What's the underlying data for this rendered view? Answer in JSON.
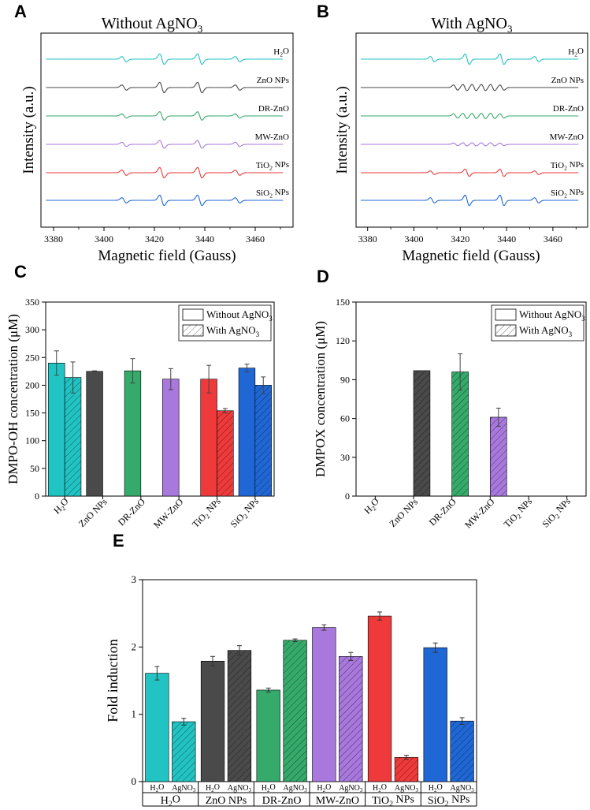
{
  "figure": {
    "panel_letters": [
      "A",
      "B",
      "C",
      "D",
      "E"
    ],
    "colors": {
      "H2O": "#22c3c3",
      "ZnO NPs": "#4a4a4a",
      "DR-ZnO": "#36aa6a",
      "MW-ZnO": "#a878dc",
      "TiO2 NPs": "#ee3a3a",
      "SiO2 NPs": "#2067d6"
    }
  },
  "chart_data": [
    {
      "panel": "A",
      "type": "line",
      "title": "Without AgNO3",
      "title_main": "Without AgNO",
      "title_sub": "3",
      "xlabel": "Magnetic field (Gauss)",
      "ylabel": "Intensity (a.u.)",
      "xlim": [
        3375,
        3475
      ],
      "xticks": [
        3380,
        3400,
        3420,
        3440,
        3460
      ],
      "series": [
        {
          "name": "H2O",
          "label_main": "H",
          "label_sub": "2",
          "label_tail": "O",
          "peaks": [
            3408,
            3423,
            3438,
            3453
          ],
          "amps": [
            0.5,
            1.0,
            1.0,
            0.5
          ],
          "spacing": 0
        },
        {
          "name": "ZnO NPs",
          "label_main": "ZnO NPs",
          "label_sub": "",
          "label_tail": "",
          "peaks": [
            3408,
            3423,
            3438,
            3453
          ],
          "amps": [
            0.5,
            1.0,
            1.0,
            0.5
          ],
          "spacing": 0
        },
        {
          "name": "DR-ZnO",
          "label_main": "DR-ZnO",
          "label_sub": "",
          "label_tail": "",
          "peaks": [
            3408,
            3423,
            3438,
            3453
          ],
          "amps": [
            0.4,
            0.8,
            0.8,
            0.4
          ],
          "spacing": 0
        },
        {
          "name": "MW-ZnO",
          "label_main": "MW-ZnO",
          "label_sub": "",
          "label_tail": "",
          "peaks": [
            3408,
            3423,
            3438,
            3453
          ],
          "amps": [
            0.4,
            0.75,
            0.75,
            0.4
          ],
          "spacing": 0
        },
        {
          "name": "TiO2 NPs",
          "label_main": "TiO",
          "label_sub": "2",
          "label_tail": " NPs",
          "peaks": [
            3408,
            3423,
            3438,
            3453
          ],
          "amps": [
            0.5,
            1.0,
            1.0,
            0.5
          ],
          "spacing": 0
        },
        {
          "name": "SiO2 NPs",
          "label_main": "SiO",
          "label_sub": "2",
          "label_tail": " NPs",
          "peaks": [
            3408,
            3423,
            3438,
            3453
          ],
          "amps": [
            0.5,
            1.0,
            1.0,
            0.5
          ],
          "spacing": 0
        }
      ]
    },
    {
      "panel": "B",
      "type": "line",
      "title": "With AgNO3",
      "title_main": "With AgNO",
      "title_sub": "3",
      "xlabel": "Magnetic field (Gauss)",
      "ylabel": "Intensity (a.u.)",
      "xlim": [
        3375,
        3475
      ],
      "xticks": [
        3380,
        3400,
        3420,
        3440,
        3460
      ],
      "series": [
        {
          "name": "H2O",
          "label_main": "H",
          "label_sub": "2",
          "label_tail": "O",
          "peaks": [
            3408,
            3423,
            3438,
            3453
          ],
          "amps": [
            0.5,
            1.0,
            1.0,
            0.5
          ],
          "spacing": 0
        },
        {
          "name": "ZnO NPs",
          "label_main": "ZnO NPs",
          "label_sub": "",
          "label_tail": "",
          "peaks": [
            3418,
            3422,
            3426,
            3430,
            3434,
            3438
          ],
          "amps": [
            0.5,
            0.6,
            0.6,
            0.6,
            0.6,
            0.5
          ],
          "spacing": 0
        },
        {
          "name": "DR-ZnO",
          "label_main": "DR-ZnO",
          "label_sub": "",
          "label_tail": "",
          "peaks": [
            3418,
            3422,
            3426,
            3430,
            3434,
            3438
          ],
          "amps": [
            0.4,
            0.5,
            0.5,
            0.5,
            0.5,
            0.4
          ],
          "spacing": 0
        },
        {
          "name": "MW-ZnO",
          "label_main": "MW-ZnO",
          "label_sub": "",
          "label_tail": "",
          "peaks": [
            3418,
            3422,
            3426,
            3430,
            3434,
            3438
          ],
          "amps": [
            0.25,
            0.3,
            0.3,
            0.3,
            0.3,
            0.25
          ],
          "spacing": 0
        },
        {
          "name": "TiO2 NPs",
          "label_main": "TiO",
          "label_sub": "2",
          "label_tail": " NPs",
          "peaks": [
            3408,
            3423,
            3438,
            3453
          ],
          "amps": [
            0.35,
            0.7,
            0.7,
            0.35
          ],
          "spacing": 0
        },
        {
          "name": "SiO2 NPs",
          "label_main": "SiO",
          "label_sub": "2",
          "label_tail": " NPs",
          "peaks": [
            3408,
            3423,
            3438,
            3453
          ],
          "amps": [
            0.5,
            1.0,
            1.0,
            0.5
          ],
          "spacing": 0
        }
      ]
    },
    {
      "panel": "C",
      "type": "bar",
      "ylabel": "DMPO-OH concentration (μM)",
      "ylim": [
        0,
        350
      ],
      "yticks": [
        0,
        50,
        100,
        150,
        200,
        250,
        300,
        350
      ],
      "legend": [
        {
          "label": "Without AgNO",
          "sub": "3",
          "hatched": false
        },
        {
          "label": "With AgNO",
          "sub": "3",
          "hatched": true
        }
      ],
      "legend_position": "top-right",
      "categories": [
        {
          "name": "H2O",
          "main": "H",
          "sub": "2",
          "tail": "O"
        },
        {
          "name": "ZnO NPs",
          "main": "ZnO NPs",
          "sub": "",
          "tail": ""
        },
        {
          "name": "DR-ZnO",
          "main": "DR-ZnO",
          "sub": "",
          "tail": ""
        },
        {
          "name": "MW-ZnO",
          "main": "MW-ZnO",
          "sub": "",
          "tail": ""
        },
        {
          "name": "TiO2 NPs",
          "main": "TiO",
          "sub": "2",
          "tail": " NPs"
        },
        {
          "name": "SiO2 NPs",
          "main": "SiO",
          "sub": "2",
          "tail": " NPs"
        }
      ],
      "series": [
        {
          "name": "Without AgNO3",
          "values": [
            240,
            225,
            226,
            211,
            211,
            231
          ],
          "errors": [
            22,
            1,
            22,
            19,
            25,
            7
          ]
        },
        {
          "name": "With AgNO3",
          "values": [
            214,
            0,
            0,
            0,
            154,
            200
          ],
          "errors": [
            28,
            0,
            0,
            0,
            4,
            15
          ]
        }
      ]
    },
    {
      "panel": "D",
      "type": "bar",
      "ylabel": "DMPOX concentration (μM)",
      "ylim": [
        0,
        150
      ],
      "yticks": [
        0,
        30,
        60,
        90,
        120,
        150
      ],
      "legend": [
        {
          "label": "Without AgNO",
          "sub": "3",
          "hatched": false
        },
        {
          "label": "With AgNO",
          "sub": "3",
          "hatched": true
        }
      ],
      "legend_position": "top-right",
      "categories": [
        {
          "name": "H2O",
          "main": "H",
          "sub": "2",
          "tail": "O"
        },
        {
          "name": "ZnO NPs",
          "main": "ZnO NPs",
          "sub": "",
          "tail": ""
        },
        {
          "name": "DR-ZnO",
          "main": "DR-ZnO",
          "sub": "",
          "tail": ""
        },
        {
          "name": "MW-ZnO",
          "main": "MW-ZnO",
          "sub": "",
          "tail": ""
        },
        {
          "name": "TiO2 NPs",
          "main": "TiO",
          "sub": "2",
          "tail": " NPs"
        },
        {
          "name": "SiO2 NPs",
          "main": "SiO",
          "sub": "2",
          "tail": " NPs"
        }
      ],
      "series": [
        {
          "name": "Without AgNO3",
          "values": [
            0,
            0,
            0,
            0,
            0,
            0
          ],
          "errors": [
            0,
            0,
            0,
            0,
            0,
            0
          ]
        },
        {
          "name": "With AgNO3",
          "values": [
            0,
            97,
            96,
            61,
            0,
            0
          ],
          "errors": [
            0,
            0,
            14,
            7,
            0,
            0
          ]
        }
      ]
    },
    {
      "panel": "E",
      "type": "bar",
      "ylabel": "Fold induction",
      "ylim": [
        0,
        3
      ],
      "yticks": [
        0,
        1,
        2,
        3
      ],
      "groups": [
        {
          "name": "H2O",
          "main": "H",
          "sub": "2",
          "tail": "O"
        },
        {
          "name": "ZnO NPs",
          "main": "ZnO NPs",
          "sub": "",
          "tail": ""
        },
        {
          "name": "DR-ZnO",
          "main": "DR-ZnO",
          "sub": "",
          "tail": ""
        },
        {
          "name": "MW-ZnO",
          "main": "MW-ZnO",
          "sub": "",
          "tail": ""
        },
        {
          "name": "TiO2 NPs",
          "main": "TiO",
          "sub": "2",
          "tail": " NPs"
        },
        {
          "name": "SiO2 NPs",
          "main": "SiO",
          "sub": "2",
          "tail": " NPs"
        }
      ],
      "sub_labels": [
        {
          "name": "H2O",
          "main": "H",
          "sub": "2",
          "tail": "O"
        },
        {
          "name": "AgNO3",
          "main": "AgNO",
          "sub": "3",
          "tail": ""
        }
      ],
      "series": [
        {
          "name": "H2O",
          "values": [
            1.61,
            1.79,
            1.36,
            2.29,
            2.46,
            1.99
          ],
          "errors": [
            0.1,
            0.07,
            0.03,
            0.04,
            0.06,
            0.07
          ]
        },
        {
          "name": "AgNO3",
          "values": [
            0.89,
            1.95,
            2.1,
            1.86,
            0.36,
            0.9
          ],
          "errors": [
            0.05,
            0.07,
            0.02,
            0.06,
            0.03,
            0.05
          ]
        }
      ]
    }
  ]
}
